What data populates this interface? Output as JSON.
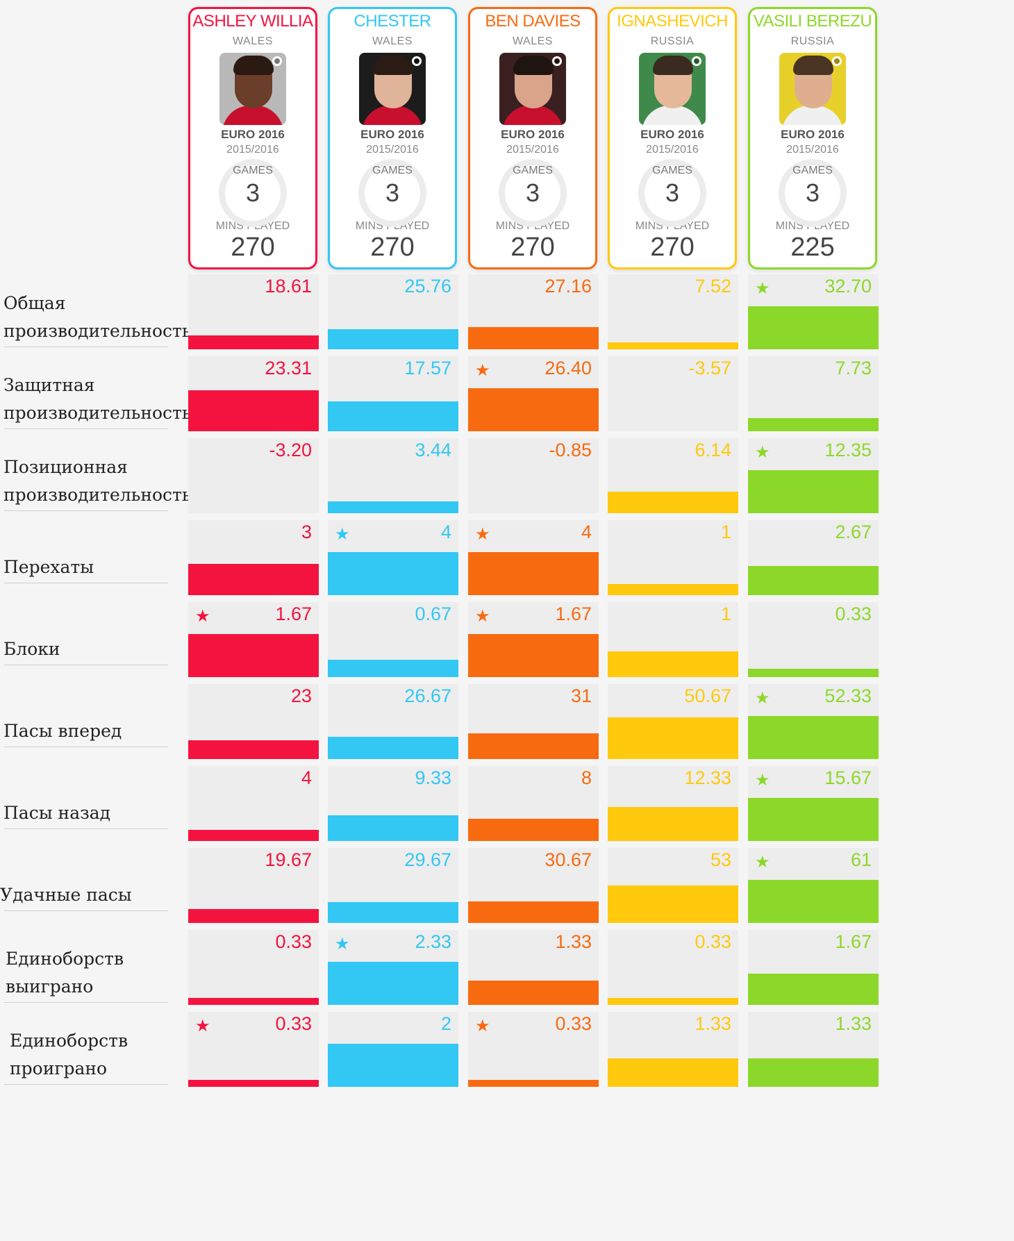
{
  "players": [
    {
      "name": "ASHLEY WILLIA",
      "country": "WALES",
      "competition": "EURO 2016",
      "season": "2015/2016",
      "games_label": "GAMES",
      "games": "3",
      "mins_label": "MINS PLAYED",
      "mins": "270",
      "color": "#f4133f",
      "photo_colors": {
        "bg": "#b9b9b9",
        "skin": "#6b3e2a",
        "hair": "#2a1a12",
        "shirt": "#c8102e"
      }
    },
    {
      "name": "CHESTER",
      "country": "WALES",
      "competition": "EURO 2016",
      "season": "2015/2016",
      "games_label": "GAMES",
      "games": "3",
      "mins_label": "MINS PLAYED",
      "mins": "270",
      "color": "#33c7f4",
      "photo_colors": {
        "bg": "#1c1c1c",
        "skin": "#e0b49a",
        "hair": "#2a1c14",
        "shirt": "#c8102e"
      }
    },
    {
      "name": "BEN DAVIES",
      "country": "WALES",
      "competition": "EURO 2016",
      "season": "2015/2016",
      "games_label": "GAMES",
      "games": "3",
      "mins_label": "MINS PLAYED",
      "mins": "270",
      "color": "#f86a10",
      "photo_colors": {
        "bg": "#3a2020",
        "skin": "#d9a48a",
        "hair": "#1e1410",
        "shirt": "#c8102e"
      }
    },
    {
      "name": "IGNASHEVICH",
      "country": "RUSSIA",
      "competition": "EURO 2016",
      "season": "2015/2016",
      "games_label": "GAMES",
      "games": "3",
      "mins_label": "MINS PLAYED",
      "mins": "270",
      "color": "#ffc90e",
      "photo_colors": {
        "bg": "#3f8a4a",
        "skin": "#e6b89a",
        "hair": "#3a2a20",
        "shirt": "#f0f0f0"
      }
    },
    {
      "name": "VASILI BEREZU",
      "country": "RUSSIA",
      "competition": "EURO 2016",
      "season": "2015/2016",
      "games_label": "GAMES",
      "games": "3",
      "mins_label": "MINS PLAYED",
      "mins": "225",
      "color": "#8cd82a",
      "photo_colors": {
        "bg": "#e8d02a",
        "skin": "#dfae8f",
        "hair": "#4a3424",
        "shirt": "#f0f0f0"
      }
    }
  ],
  "stats": [
    {
      "label": "Общая\nпроизводительность",
      "values": [
        "18.61",
        "25.76",
        "27.16",
        "7.52",
        "32.70"
      ],
      "stars": [
        false,
        false,
        false,
        false,
        true
      ]
    },
    {
      "label": "Защитная\nпроизводительность",
      "values": [
        "23.31",
        "17.57",
        "26.40",
        "-3.57",
        "7.73"
      ],
      "stars": [
        false,
        false,
        true,
        false,
        false
      ]
    },
    {
      "label": "Позиционная\nпроизводительность",
      "values": [
        "-3.20",
        "3.44",
        "-0.85",
        "6.14",
        "12.35"
      ],
      "stars": [
        false,
        false,
        false,
        false,
        true
      ]
    },
    {
      "label": "Перехаты",
      "values": [
        "3",
        "4",
        "4",
        "1",
        "2.67"
      ],
      "stars": [
        false,
        true,
        true,
        false,
        false
      ]
    },
    {
      "label": "Блоки",
      "values": [
        "1.67",
        "0.67",
        "1.67",
        "1",
        "0.33"
      ],
      "stars": [
        true,
        false,
        true,
        false,
        false
      ]
    },
    {
      "label": "Пасы вперед",
      "values": [
        "23",
        "26.67",
        "31",
        "50.67",
        "52.33"
      ],
      "stars": [
        false,
        false,
        false,
        false,
        true
      ]
    },
    {
      "label": "Пасы назад",
      "values": [
        "4",
        "9.33",
        "8",
        "12.33",
        "15.67"
      ],
      "stars": [
        false,
        false,
        false,
        false,
        true
      ]
    },
    {
      "label": "Удачные пасы",
      "values": [
        "19.67",
        "29.67",
        "30.67",
        "53",
        "61"
      ],
      "stars": [
        false,
        false,
        false,
        false,
        true
      ]
    },
    {
      "label": "Единоборств\nвыиграно",
      "values": [
        "0.33",
        "2.33",
        "1.33",
        "0.33",
        "1.67"
      ],
      "stars": [
        false,
        true,
        false,
        false,
        false
      ]
    },
    {
      "label": "Единоборств\nпроиграно",
      "values": [
        "0.33",
        "2",
        "0.33",
        "1.33",
        "1.33"
      ],
      "stars": [
        true,
        false,
        true,
        false,
        false
      ]
    }
  ],
  "bar_fill_fraction": [
    [
      0.32,
      0.46,
      0.52,
      0.14,
      1.0
    ],
    [
      0.95,
      0.7,
      1.0,
      0.0,
      0.3
    ],
    [
      0.0,
      0.28,
      0.0,
      0.5,
      1.0
    ],
    [
      0.72,
      1.0,
      1.0,
      0.26,
      0.67
    ],
    [
      1.0,
      0.4,
      1.0,
      0.6,
      0.2
    ],
    [
      0.44,
      0.51,
      0.59,
      0.97,
      1.0
    ],
    [
      0.26,
      0.6,
      0.51,
      0.79,
      1.0
    ],
    [
      0.32,
      0.49,
      0.5,
      0.87,
      1.0
    ],
    [
      0.14,
      1.0,
      0.57,
      0.14,
      0.72
    ],
    [
      0.16,
      1.0,
      0.16,
      0.66,
      0.66
    ]
  ],
  "star_glyph": "★"
}
